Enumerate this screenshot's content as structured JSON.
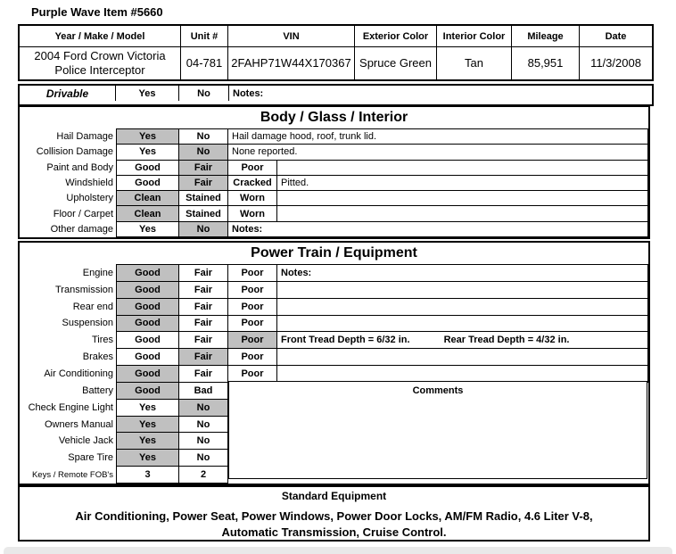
{
  "page": {
    "title": "Purple Wave Item #5660"
  },
  "vehicle_table": {
    "headers": [
      "Year / Make / Model",
      "Unit #",
      "VIN",
      "Exterior Color",
      "Interior Color",
      "Mileage",
      "Date"
    ],
    "values": {
      "year_make_model_line1": "2004 Ford Crown Victoria",
      "year_make_model_line2": "Police Interceptor",
      "unit_number": "04-781",
      "vin": "2FAHP71W44X170367",
      "exterior_color": "Spruce Green",
      "interior_color": "Tan",
      "mileage": "85,951",
      "date": "11/3/2008"
    }
  },
  "drivable": {
    "label": "Drivable",
    "opt1": "Yes",
    "opt2": "No",
    "selected": 1,
    "notes": "Notes:"
  },
  "body_section": {
    "title": "Body / Glass / Interior",
    "rows": [
      {
        "label": "Hail Damage",
        "opt1": "Yes",
        "opt2": "No",
        "selected": 1,
        "notes": "Hail damage hood, roof, trunk lid."
      },
      {
        "label": "Collision Damage",
        "opt1": "Yes",
        "opt2": "No",
        "selected": 2,
        "notes": "None reported."
      },
      {
        "label": "Paint and Body",
        "opt1": "Good",
        "opt2": "Fair",
        "opt3": "Poor",
        "selected": 2,
        "notes": ""
      },
      {
        "label": "Windshield",
        "opt1": "Good",
        "opt2": "Fair",
        "opt3": "Cracked",
        "selected": 2,
        "notes": "Pitted."
      },
      {
        "label": "Upholstery",
        "opt1": "Clean",
        "opt2": "Stained",
        "opt3": "Worn",
        "selected": 1,
        "notes": ""
      },
      {
        "label": "Floor / Carpet",
        "opt1": "Clean",
        "opt2": "Stained",
        "opt3": "Worn",
        "selected": 1,
        "notes": ""
      },
      {
        "label": "Other damage",
        "opt1": "Yes",
        "opt2": "No",
        "selected": 2,
        "notes": "Notes:"
      }
    ]
  },
  "power_section": {
    "title": "Power Train / Equipment",
    "comments_label": "Comments",
    "rows": [
      {
        "label": "Engine",
        "opt1": "Good",
        "opt2": "Fair",
        "opt3": "Poor",
        "selected": 1,
        "notes": "Notes:"
      },
      {
        "label": "Transmission",
        "opt1": "Good",
        "opt2": "Fair",
        "opt3": "Poor",
        "selected": 1,
        "notes": ""
      },
      {
        "label": "Rear end",
        "opt1": "Good",
        "opt2": "Fair",
        "opt3": "Poor",
        "selected": 1,
        "notes": ""
      },
      {
        "label": "Suspension",
        "opt1": "Good",
        "opt2": "Fair",
        "opt3": "Poor",
        "selected": 1,
        "notes": ""
      },
      {
        "label": "Tires",
        "opt1": "Good",
        "opt2": "Fair",
        "opt3": "Poor",
        "selected": 3,
        "notes": "Front Tread Depth = 6/32 in.",
        "notes2": "Rear Tread Depth = 4/32 in."
      },
      {
        "label": "Brakes",
        "opt1": "Good",
        "opt2": "Fair",
        "opt3": "Poor",
        "selected": 2,
        "notes": ""
      },
      {
        "label": "Air Conditioning",
        "opt1": "Good",
        "opt2": "Fair",
        "opt3": "Poor",
        "selected": 1,
        "notes": ""
      },
      {
        "label": "Battery",
        "opt1": "Good",
        "opt2": "Bad",
        "selected": 1
      },
      {
        "label": "Check Engine Light",
        "opt1": "Yes",
        "opt2": "No",
        "selected": 2
      },
      {
        "label": "Owners Manual",
        "opt1": "Yes",
        "opt2": "No",
        "selected": 1
      },
      {
        "label": "Vehicle Jack",
        "opt1": "Yes",
        "opt2": "No",
        "selected": 1
      },
      {
        "label": "Spare Tire",
        "opt1": "Yes",
        "opt2": "No",
        "selected": 1
      },
      {
        "label": "Keys / Remote FOB's",
        "opt1": "3",
        "opt2": "2",
        "selected": 0
      }
    ]
  },
  "standard_equipment": {
    "title": "Standard Equipment",
    "line1": "Air Conditioning, Power Seat, Power Windows, Power Door Locks, AM/FM Radio, 4.6 Liter V-8,",
    "line2": "Automatic Transmission, Cruise Control."
  },
  "colors": {
    "selected_fill": "#c0c0c0",
    "border": "#000000"
  }
}
